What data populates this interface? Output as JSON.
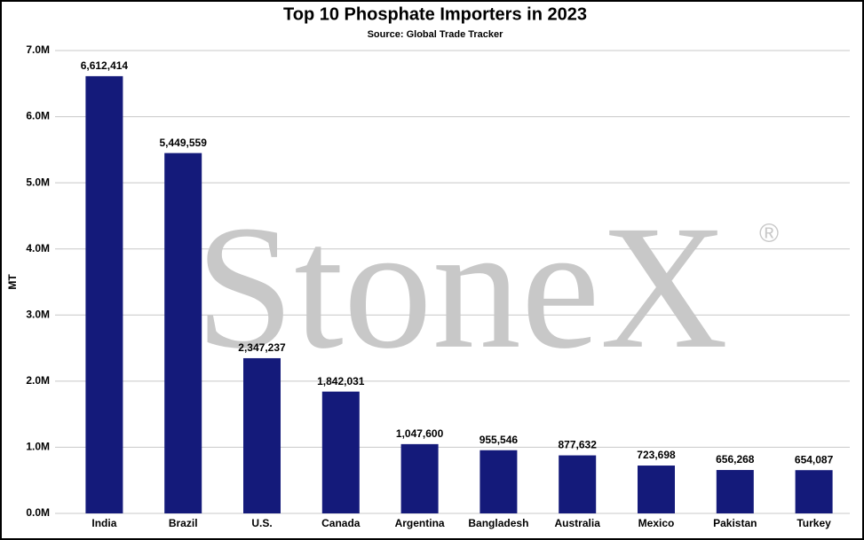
{
  "chart_data": {
    "type": "bar",
    "title": "Top 10 Phosphate Importers in 2023",
    "subtitle": "Source: Global Trade Tracker",
    "y_label": "MT",
    "watermark": "StoneX",
    "watermark_mark": "®",
    "categories": [
      "India",
      "Brazil",
      "U.S.",
      "Canada",
      "Argentina",
      "Bangladesh",
      "Australia",
      "Mexico",
      "Pakistan",
      "Turkey"
    ],
    "values": [
      6612414,
      5449559,
      2347237,
      1842031,
      1047600,
      955546,
      877632,
      723698,
      656268,
      654087
    ],
    "value_labels": [
      "6,612,414",
      "5,449,559",
      "2,347,237",
      "1,842,031",
      "1,047,600",
      "955,546",
      "877,632",
      "723,698",
      "656,268",
      "654,087"
    ],
    "color": "#141a7a",
    "ylim": [
      0,
      7000000
    ],
    "yticks": [
      {
        "value": 0,
        "label": "0.0M"
      },
      {
        "value": 1000000,
        "label": "1.0M"
      },
      {
        "value": 2000000,
        "label": "2.0M"
      },
      {
        "value": 3000000,
        "label": "3.0M"
      },
      {
        "value": 4000000,
        "label": "4.0M"
      },
      {
        "value": 5000000,
        "label": "5.0M"
      },
      {
        "value": 6000000,
        "label": "6.0M"
      },
      {
        "value": 7000000,
        "label": "7.0M"
      }
    ],
    "grid": true
  }
}
